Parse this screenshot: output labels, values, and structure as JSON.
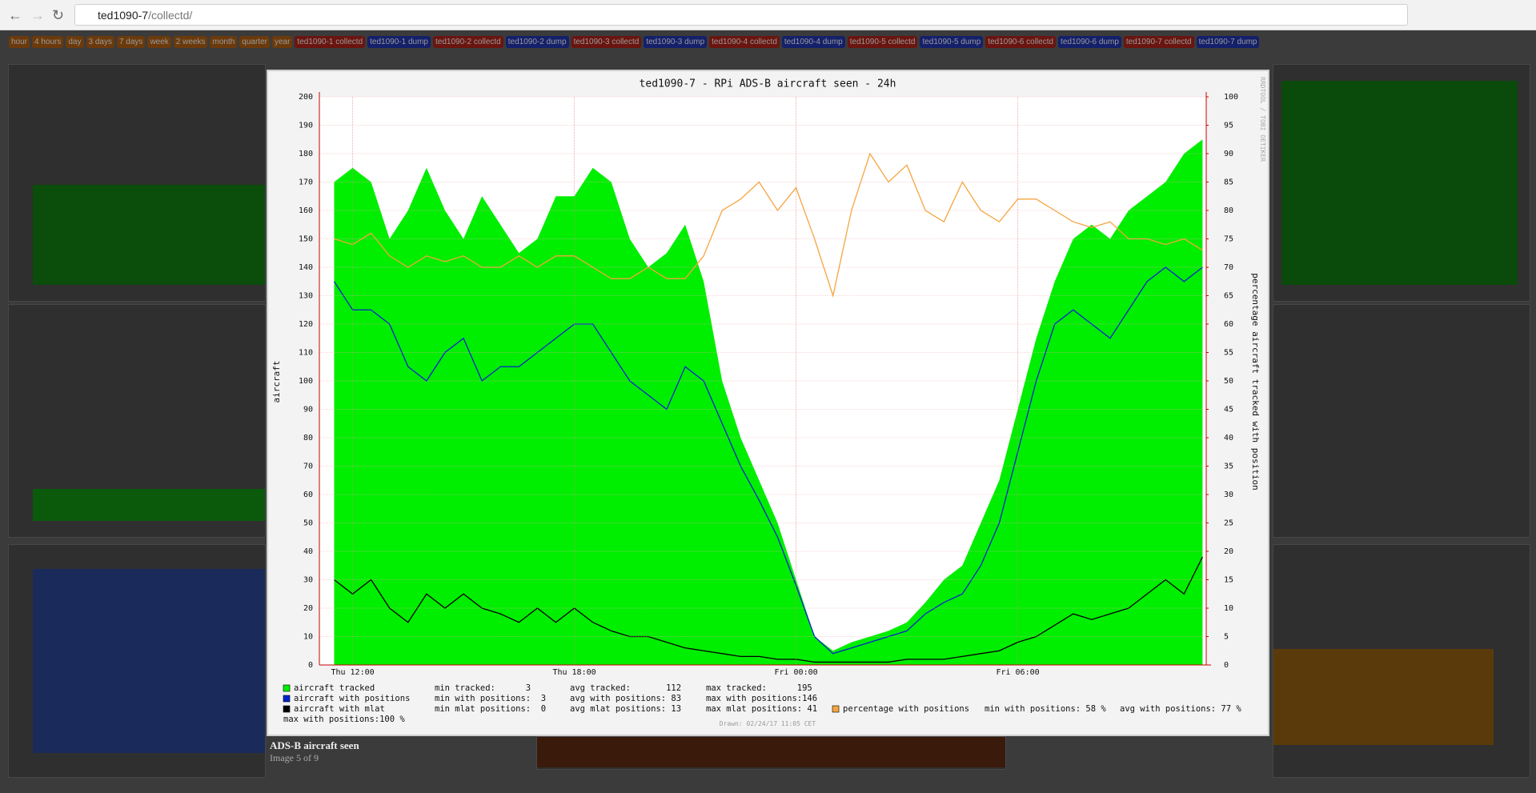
{
  "browser": {
    "url_host": "ted1090-7",
    "url_path": "/collectd/"
  },
  "nav": {
    "buttons": [
      "hour",
      "4 hours",
      "day",
      "3 days",
      "7 days",
      "week",
      "2 weeks",
      "month",
      "quarter",
      "year",
      "ted1090-1 collectd",
      "ted1090-1 dump",
      "ted1090-2 collectd",
      "ted1090-2 dump",
      "ted1090-3 collectd",
      "ted1090-3 dump",
      "ted1090-4 collectd",
      "ted1090-4 dump",
      "ted1090-5 collectd",
      "ted1090-5 dump",
      "ted1090-6 collectd",
      "ted1090-6 dump",
      "ted1090-7 collectd",
      "ted1090-7 dump"
    ]
  },
  "lightbox": {
    "caption": "ADS-B aircraft seen",
    "counter": "Image 5 of 9"
  },
  "chart_data": {
    "type": "line",
    "title": "ted1090-7 - RPi ADS-B aircraft seen - 24h",
    "y_label": "aircraft",
    "y2_label": "percentage aircraft tracked with position",
    "watermark": "RRDTOOL / TOBI OETIKER",
    "footer": "Drawn: 02/24/17 11:05 CET",
    "xlim": [
      11.1,
      35.1
    ],
    "xticks": [
      {
        "value": 12,
        "label": "Thu 12:00"
      },
      {
        "value": 18,
        "label": "Thu 18:00"
      },
      {
        "value": 24,
        "label": "Fri 00:00"
      },
      {
        "value": 30,
        "label": "Fri 06:00"
      }
    ],
    "ylim": [
      0,
      200
    ],
    "yticks": [
      0,
      10,
      20,
      30,
      40,
      50,
      60,
      70,
      80,
      90,
      100,
      110,
      120,
      130,
      140,
      150,
      160,
      170,
      180,
      190,
      200
    ],
    "y2lim": [
      0,
      100
    ],
    "y2ticks": [
      0,
      5,
      10,
      15,
      20,
      25,
      30,
      35,
      40,
      45,
      50,
      55,
      60,
      65,
      70,
      75,
      80,
      85,
      90,
      95,
      100
    ],
    "grid": true,
    "x": [
      11.5,
      12,
      12.5,
      13,
      13.5,
      14,
      14.5,
      15,
      15.5,
      16,
      16.5,
      17,
      17.5,
      18,
      18.5,
      19,
      19.5,
      20,
      20.5,
      21,
      21.5,
      22,
      22.5,
      23,
      23.5,
      24,
      24.5,
      25,
      25.5,
      26,
      26.5,
      27,
      27.5,
      28,
      28.5,
      29,
      29.5,
      30,
      30.5,
      31,
      31.5,
      32,
      32.5,
      33,
      33.5,
      34,
      34.5,
      35
    ],
    "series": [
      {
        "name": "aircraft tracked",
        "color": "#00ee00",
        "style": "area",
        "stats": [
          "min tracked:      3",
          "avg tracked:       112",
          "max tracked:      195"
        ],
        "values": [
          170,
          175,
          170,
          150,
          160,
          175,
          160,
          150,
          165,
          155,
          145,
          150,
          165,
          165,
          175,
          170,
          150,
          140,
          145,
          155,
          135,
          100,
          80,
          65,
          50,
          30,
          10,
          5,
          8,
          10,
          12,
          15,
          22,
          30,
          35,
          50,
          65,
          90,
          115,
          135,
          150,
          155,
          150,
          160,
          165,
          170,
          180,
          185
        ]
      },
      {
        "name": "aircraft with positions",
        "color": "#0022cc",
        "style": "line",
        "stats": [
          "min with positions:  3",
          "avg with positions: 83",
          "max with positions:146"
        ],
        "values": [
          135,
          125,
          125,
          120,
          105,
          100,
          110,
          115,
          100,
          105,
          105,
          110,
          115,
          120,
          120,
          110,
          100,
          95,
          90,
          105,
          100,
          85,
          70,
          58,
          45,
          28,
          10,
          4,
          6,
          8,
          10,
          12,
          18,
          22,
          25,
          35,
          50,
          75,
          100,
          120,
          125,
          120,
          115,
          125,
          135,
          140,
          135,
          140
        ]
      },
      {
        "name": "aircraft with mlat",
        "color": "#000000",
        "style": "line",
        "stats": [
          "min mlat positions:  0",
          "avg mlat positions: 13",
          "max mlat positions: 41"
        ],
        "values": [
          30,
          25,
          30,
          20,
          15,
          25,
          20,
          25,
          20,
          18,
          15,
          20,
          15,
          20,
          15,
          12,
          10,
          10,
          8,
          6,
          5,
          4,
          3,
          3,
          2,
          2,
          1,
          1,
          1,
          1,
          1,
          2,
          2,
          2,
          3,
          4,
          5,
          8,
          10,
          14,
          18,
          16,
          18,
          20,
          25,
          30,
          25,
          38
        ]
      },
      {
        "name": "percentage with positions",
        "color": "#f5a540",
        "style": "line",
        "axis": "y2",
        "stats": [
          "min with positions: 58 %",
          "avg with positions: 77 %",
          "max with positions:100 %"
        ],
        "values": [
          75,
          74,
          76,
          72,
          70,
          72,
          71,
          72,
          70,
          70,
          72,
          70,
          72,
          72,
          70,
          68,
          68,
          70,
          68,
          68,
          72,
          80,
          82,
          85,
          80,
          84,
          75,
          65,
          80,
          90,
          85,
          88,
          80,
          78,
          85,
          80,
          78,
          82,
          82,
          80,
          78,
          77,
          78,
          75,
          75,
          74,
          75,
          73
        ]
      }
    ]
  }
}
